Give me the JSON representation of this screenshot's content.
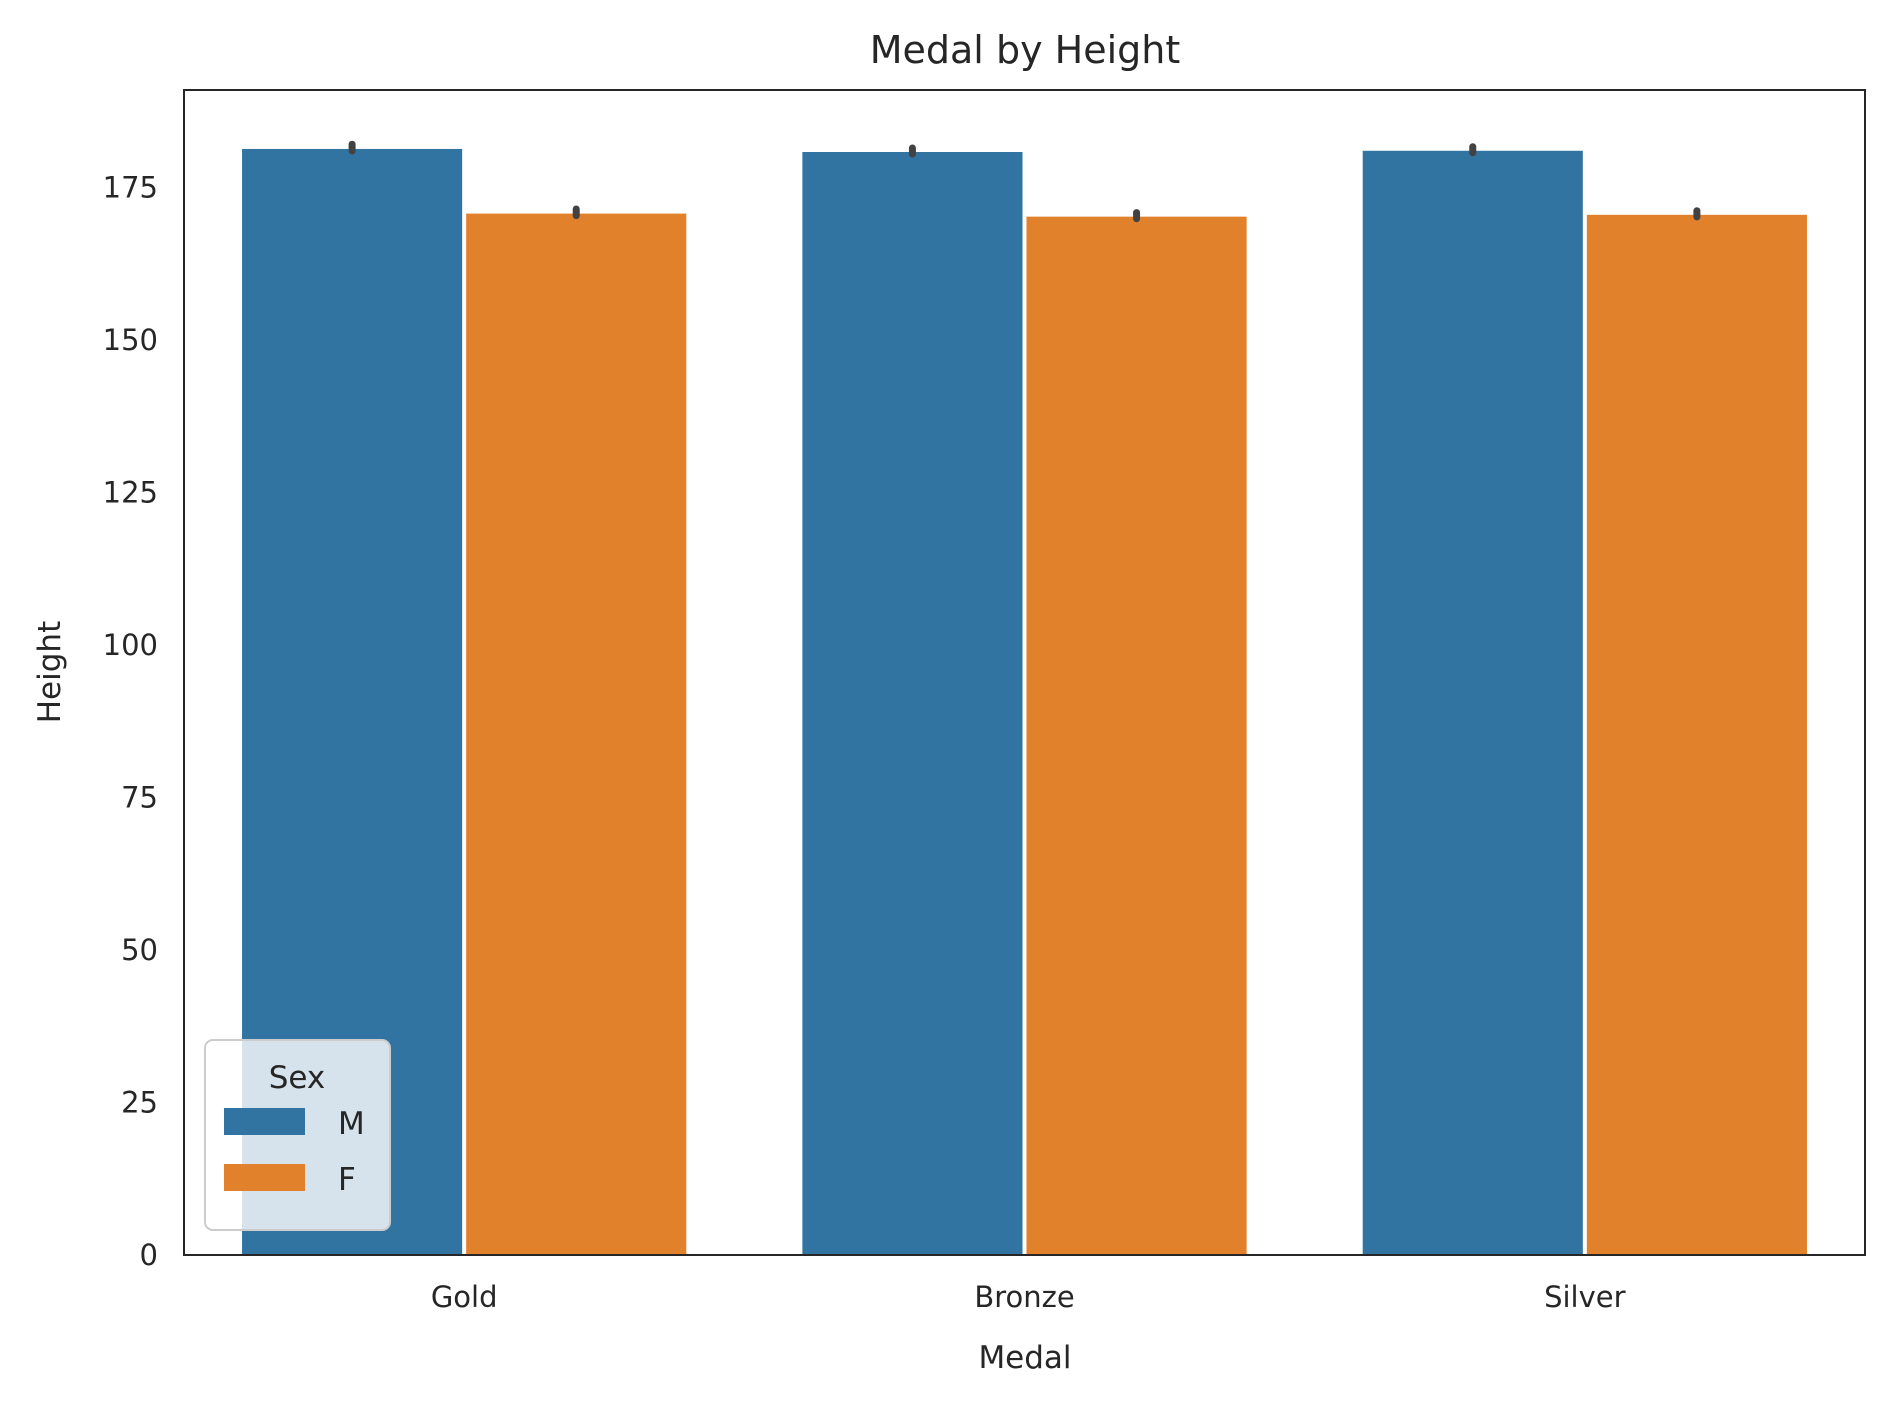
{
  "chart_data": {
    "type": "bar",
    "title": "Medal by Height",
    "xlabel": "Medal",
    "ylabel": "Height",
    "categories": [
      "Gold",
      "Bronze",
      "Silver"
    ],
    "series": [
      {
        "name": "M",
        "values": [
          181.5,
          181.0,
          181.2
        ],
        "ci": [
          [
            181.0,
            182.1
          ],
          [
            180.5,
            181.5
          ],
          [
            180.7,
            181.7
          ]
        ],
        "color": "#3274a1"
      },
      {
        "name": "F",
        "values": [
          170.9,
          170.4,
          170.7
        ],
        "ci": [
          [
            170.4,
            171.5
          ],
          [
            169.9,
            170.9
          ],
          [
            170.2,
            171.2
          ]
        ],
        "color": "#e1812c"
      }
    ],
    "ylim": [
      0,
      191
    ],
    "yticks": [
      0,
      25,
      50,
      75,
      100,
      125,
      150,
      175
    ],
    "grid": false,
    "legend": {
      "title": "Sex",
      "placement": "lower-left"
    }
  }
}
